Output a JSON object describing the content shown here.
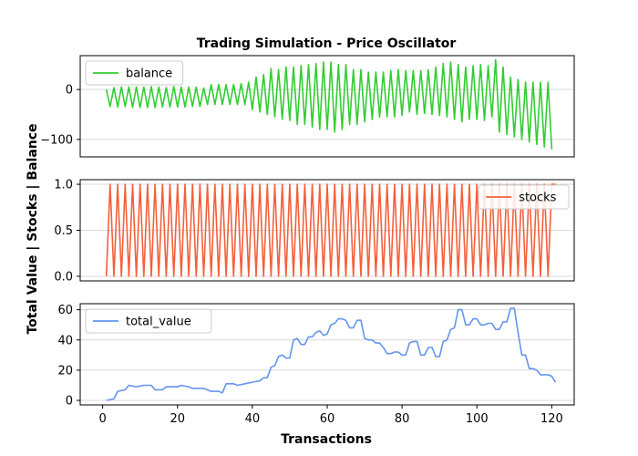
{
  "chart_data": {
    "type": "line",
    "title": "Trading Simulation - Price Oscillator",
    "xlabel": "Transactions",
    "ylabel": "Total Value | Stocks | Balance",
    "xlim": [
      -6,
      126
    ],
    "xticks": [
      0,
      20,
      40,
      60,
      80,
      100,
      120
    ],
    "grid": "horizontal",
    "legend_location": "upper-left",
    "panels": [
      {
        "name": "balance",
        "color": "#32cd32",
        "legend_location": "upper-left",
        "ylim": [
          -135,
          68
        ],
        "yticks": [
          0,
          -100
        ],
        "points": [
          [
            1,
            0
          ],
          [
            2,
            -34
          ],
          [
            3,
            4
          ],
          [
            4,
            -35
          ],
          [
            5,
            5
          ],
          [
            6,
            -34
          ],
          [
            7,
            5
          ],
          [
            8,
            -36
          ],
          [
            9,
            5
          ],
          [
            10,
            -36
          ],
          [
            11,
            5
          ],
          [
            12,
            -36
          ],
          [
            13,
            6
          ],
          [
            14,
            -36
          ],
          [
            15,
            5
          ],
          [
            16,
            -35
          ],
          [
            17,
            4
          ],
          [
            18,
            -35
          ],
          [
            19,
            6
          ],
          [
            20,
            -35
          ],
          [
            21,
            5
          ],
          [
            22,
            -35
          ],
          [
            23,
            5
          ],
          [
            24,
            -34
          ],
          [
            25,
            5
          ],
          [
            26,
            -34
          ],
          [
            27,
            3
          ],
          [
            28,
            -30
          ],
          [
            29,
            10
          ],
          [
            30,
            -30
          ],
          [
            31,
            10
          ],
          [
            32,
            -30
          ],
          [
            33,
            10
          ],
          [
            34,
            -30
          ],
          [
            35,
            10
          ],
          [
            36,
            -30
          ],
          [
            37,
            12
          ],
          [
            38,
            -30
          ],
          [
            39,
            15
          ],
          [
            40,
            -40
          ],
          [
            41,
            25
          ],
          [
            42,
            -45
          ],
          [
            43,
            30
          ],
          [
            44,
            -50
          ],
          [
            45,
            42
          ],
          [
            46,
            -55
          ],
          [
            47,
            40
          ],
          [
            48,
            -60
          ],
          [
            49,
            45
          ],
          [
            50,
            -62
          ],
          [
            51,
            45
          ],
          [
            52,
            -70
          ],
          [
            53,
            48
          ],
          [
            54,
            -70
          ],
          [
            55,
            50
          ],
          [
            56,
            -75
          ],
          [
            57,
            52
          ],
          [
            58,
            -80
          ],
          [
            59,
            55
          ],
          [
            60,
            -80
          ],
          [
            61,
            55
          ],
          [
            62,
            -85
          ],
          [
            63,
            50
          ],
          [
            64,
            -80
          ],
          [
            65,
            50
          ],
          [
            66,
            -70
          ],
          [
            67,
            40
          ],
          [
            68,
            -70
          ],
          [
            69,
            40
          ],
          [
            70,
            -65
          ],
          [
            71,
            35
          ],
          [
            72,
            -60
          ],
          [
            73,
            35
          ],
          [
            74,
            -55
          ],
          [
            75,
            35
          ],
          [
            76,
            -55
          ],
          [
            77,
            38
          ],
          [
            78,
            -55
          ],
          [
            79,
            40
          ],
          [
            80,
            -52
          ],
          [
            81,
            38
          ],
          [
            82,
            -45
          ],
          [
            83,
            38
          ],
          [
            84,
            -50
          ],
          [
            85,
            38
          ],
          [
            86,
            -48
          ],
          [
            87,
            40
          ],
          [
            88,
            -50
          ],
          [
            89,
            45
          ],
          [
            90,
            -52
          ],
          [
            91,
            52
          ],
          [
            92,
            -55
          ],
          [
            93,
            55
          ],
          [
            94,
            -60
          ],
          [
            95,
            50
          ],
          [
            96,
            -65
          ],
          [
            97,
            45
          ],
          [
            98,
            -60
          ],
          [
            99,
            48
          ],
          [
            100,
            -60
          ],
          [
            101,
            50
          ],
          [
            102,
            -62
          ],
          [
            103,
            48
          ],
          [
            104,
            -55
          ],
          [
            105,
            60
          ],
          [
            106,
            -85
          ],
          [
            107,
            45
          ],
          [
            108,
            -90
          ],
          [
            109,
            25
          ],
          [
            110,
            -95
          ],
          [
            111,
            20
          ],
          [
            112,
            -100
          ],
          [
            113,
            15
          ],
          [
            114,
            -105
          ],
          [
            115,
            15
          ],
          [
            116,
            -110
          ],
          [
            117,
            15
          ],
          [
            118,
            -115
          ],
          [
            119,
            15
          ],
          [
            120,
            -120
          ]
        ]
      },
      {
        "name": "stocks",
        "color": "#f4603b",
        "legend_location": "upper-right",
        "ylim": [
          -0.05,
          1.05
        ],
        "yticks": [
          0.0,
          0.5,
          1.0
        ],
        "tick_labels": [
          "0.0",
          "0.5",
          "1.0"
        ],
        "pattern": "alternating 0 and 1, starting at 0 on x=1, ending at 1 on x=121"
      },
      {
        "name": "total_value",
        "color": "#6495ed",
        "legend_location": "upper-left",
        "ylim": [
          -3,
          64
        ],
        "yticks": [
          0,
          20,
          40,
          60
        ],
        "points": [
          [
            1,
            0
          ],
          [
            3,
            1
          ],
          [
            4,
            6
          ],
          [
            6,
            7
          ],
          [
            7,
            10
          ],
          [
            9,
            9
          ],
          [
            11,
            10
          ],
          [
            13,
            10
          ],
          [
            14,
            7
          ],
          [
            16,
            7
          ],
          [
            17,
            9
          ],
          [
            20,
            9
          ],
          [
            21,
            10
          ],
          [
            23,
            9
          ],
          [
            24,
            8
          ],
          [
            27,
            8
          ],
          [
            29,
            6
          ],
          [
            31,
            6
          ],
          [
            32,
            5
          ],
          [
            33,
            11
          ],
          [
            35,
            11
          ],
          [
            36,
            10
          ],
          [
            38,
            11
          ],
          [
            40,
            12
          ],
          [
            42,
            13
          ],
          [
            43,
            15
          ],
          [
            44,
            15
          ],
          [
            45,
            22
          ],
          [
            46,
            23
          ],
          [
            47,
            29
          ],
          [
            48,
            30
          ],
          [
            49,
            28
          ],
          [
            50,
            28
          ],
          [
            51,
            40
          ],
          [
            52,
            41
          ],
          [
            53,
            37
          ],
          [
            54,
            37
          ],
          [
            55,
            42
          ],
          [
            56,
            42
          ],
          [
            57,
            45
          ],
          [
            58,
            46
          ],
          [
            59,
            43
          ],
          [
            60,
            44
          ],
          [
            61,
            50
          ],
          [
            62,
            51
          ],
          [
            63,
            54
          ],
          [
            64,
            54
          ],
          [
            65,
            53
          ],
          [
            66,
            48
          ],
          [
            67,
            48
          ],
          [
            68,
            53
          ],
          [
            69,
            53
          ],
          [
            70,
            41
          ],
          [
            71,
            40
          ],
          [
            72,
            40
          ],
          [
            73,
            38
          ],
          [
            74,
            38
          ],
          [
            75,
            35
          ],
          [
            76,
            31
          ],
          [
            77,
            31
          ],
          [
            78,
            32
          ],
          [
            79,
            32
          ],
          [
            80,
            30
          ],
          [
            81,
            30
          ],
          [
            82,
            38
          ],
          [
            83,
            39
          ],
          [
            84,
            39
          ],
          [
            85,
            30
          ],
          [
            86,
            30
          ],
          [
            87,
            35
          ],
          [
            88,
            35
          ],
          [
            89,
            29
          ],
          [
            90,
            29
          ],
          [
            91,
            39
          ],
          [
            92,
            40
          ],
          [
            93,
            47
          ],
          [
            94,
            48
          ],
          [
            95,
            60
          ],
          [
            96,
            60
          ],
          [
            97,
            50
          ],
          [
            98,
            50
          ],
          [
            99,
            54
          ],
          [
            100,
            54
          ],
          [
            101,
            50
          ],
          [
            102,
            50
          ],
          [
            103,
            51
          ],
          [
            104,
            51
          ],
          [
            105,
            47
          ],
          [
            106,
            47
          ],
          [
            107,
            52
          ],
          [
            108,
            52
          ],
          [
            109,
            61
          ],
          [
            110,
            61
          ],
          [
            111,
            45
          ],
          [
            112,
            30
          ],
          [
            113,
            30
          ],
          [
            114,
            21
          ],
          [
            115,
            21
          ],
          [
            116,
            20
          ],
          [
            117,
            17
          ],
          [
            118,
            17
          ],
          [
            119,
            17
          ],
          [
            120,
            16
          ],
          [
            121,
            12
          ]
        ]
      }
    ]
  }
}
